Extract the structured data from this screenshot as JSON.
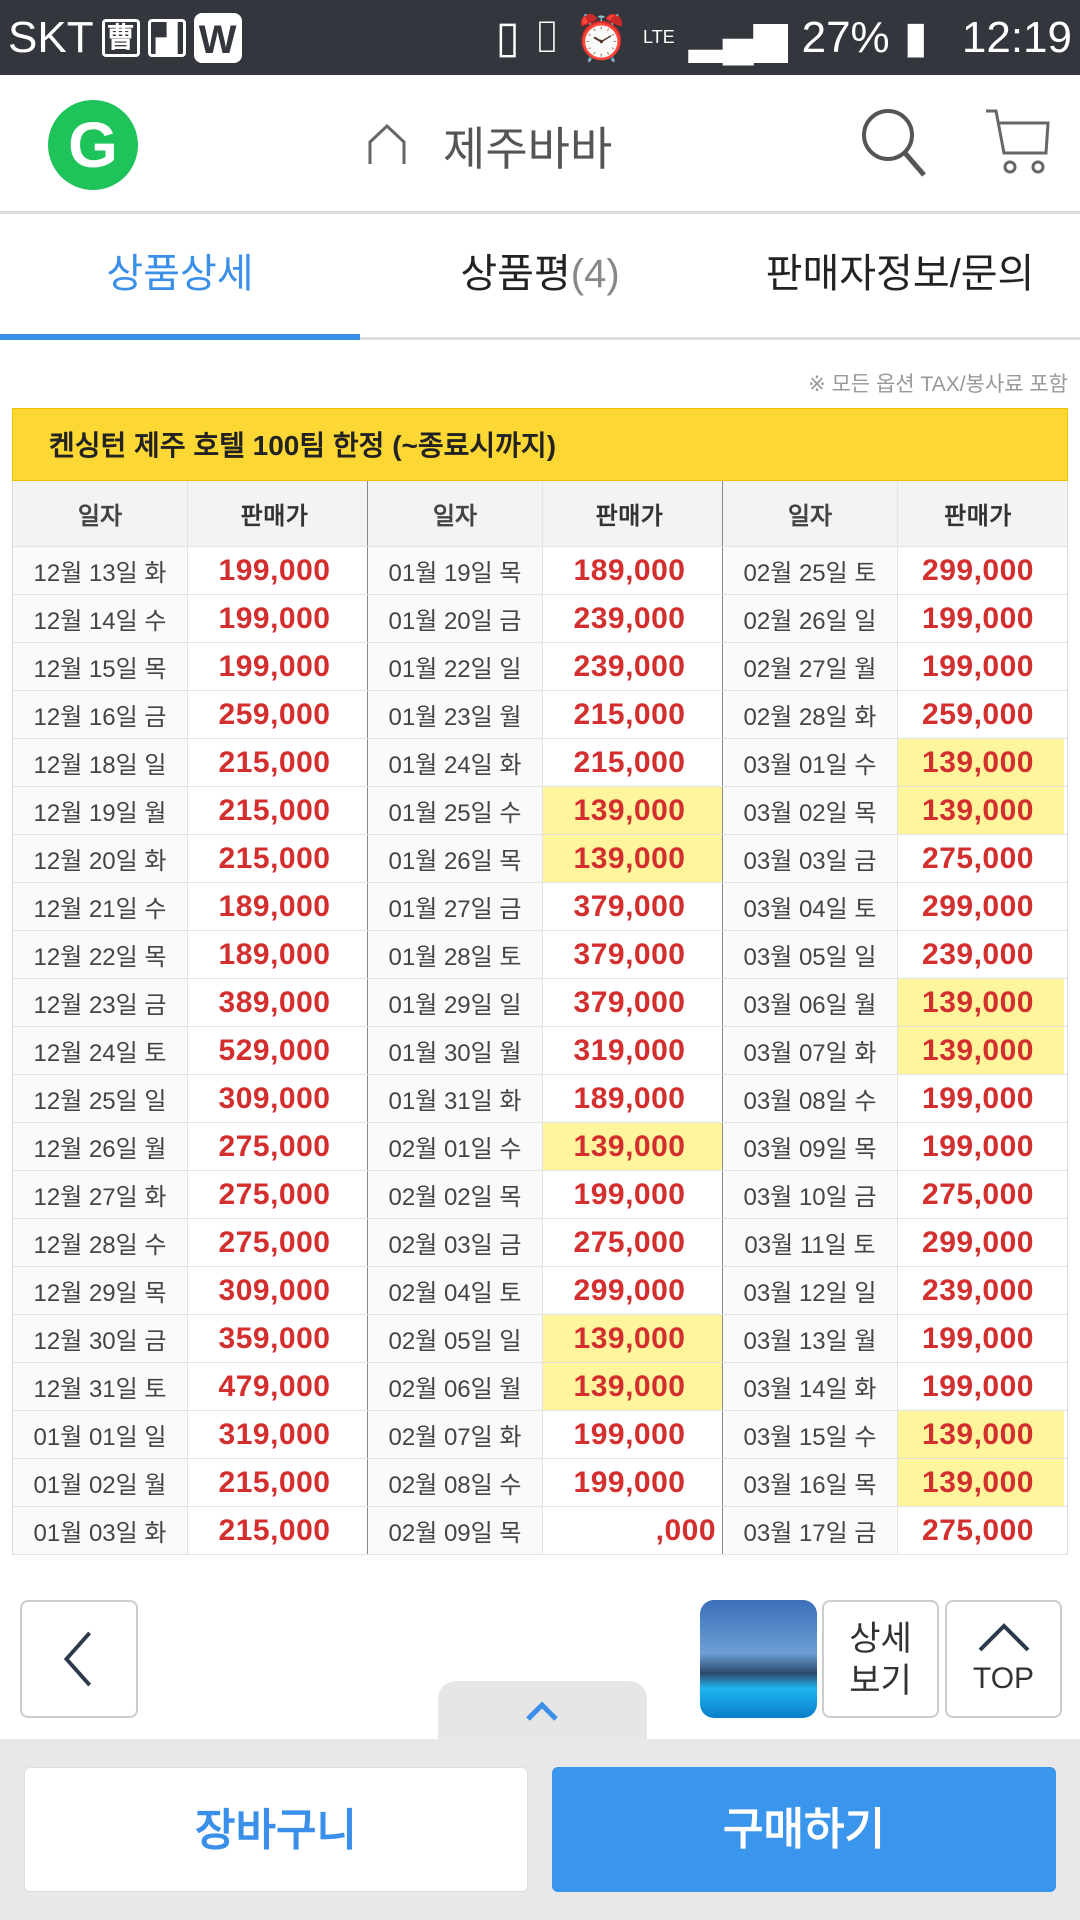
{
  "status": {
    "carrier": "SKT",
    "net": "LTE",
    "battery": "27%",
    "time": "12:19",
    "icons": [
      "news-icon",
      "gallery-icon",
      "w-app-icon",
      "screen-mirror-icon",
      "vibrate-icon",
      "alarm-icon",
      "signal-icon",
      "battery-icon"
    ]
  },
  "header": {
    "logo": "G",
    "shop_name": "제주바바"
  },
  "tabs": [
    {
      "label": "상품상세"
    },
    {
      "label": "상품평",
      "count": "(4)"
    },
    {
      "label": "판매자정보/문의"
    }
  ],
  "note": "※ 모든 옵션 TAX/봉사료 포함",
  "table": {
    "title": "켄싱턴 제주 호텔 100팀 한정 (~종료시까지)",
    "headers": [
      "일자",
      "판매가",
      "일자",
      "판매가",
      "일자",
      "판매가"
    ],
    "highlight_color": "#fff59d",
    "rows": [
      [
        [
          "12월 13일 화",
          "199,000",
          0
        ],
        [
          "01월 19일 목",
          "189,000",
          0
        ],
        [
          "02월 25일 토",
          "299,000",
          0
        ]
      ],
      [
        [
          "12월 14일 수",
          "199,000",
          0
        ],
        [
          "01월 20일 금",
          "239,000",
          0
        ],
        [
          "02월 26일 일",
          "199,000",
          0
        ]
      ],
      [
        [
          "12월 15일 목",
          "199,000",
          0
        ],
        [
          "01월 22일 일",
          "239,000",
          0
        ],
        [
          "02월 27일 월",
          "199,000",
          0
        ]
      ],
      [
        [
          "12월 16일 금",
          "259,000",
          0
        ],
        [
          "01월 23일 월",
          "215,000",
          0
        ],
        [
          "02월 28일 화",
          "259,000",
          0
        ]
      ],
      [
        [
          "12월 18일 일",
          "215,000",
          0
        ],
        [
          "01월 24일 화",
          "215,000",
          0
        ],
        [
          "03월 01일 수",
          "139,000",
          1
        ]
      ],
      [
        [
          "12월 19일 월",
          "215,000",
          0
        ],
        [
          "01월 25일 수",
          "139,000",
          1
        ],
        [
          "03월 02일 목",
          "139,000",
          1
        ]
      ],
      [
        [
          "12월 20일 화",
          "215,000",
          0
        ],
        [
          "01월 26일 목",
          "139,000",
          1
        ],
        [
          "03월 03일 금",
          "275,000",
          0
        ]
      ],
      [
        [
          "12월 21일 수",
          "189,000",
          0
        ],
        [
          "01월 27일 금",
          "379,000",
          0
        ],
        [
          "03월 04일 토",
          "299,000",
          0
        ]
      ],
      [
        [
          "12월 22일 목",
          "189,000",
          0
        ],
        [
          "01월 28일 토",
          "379,000",
          0
        ],
        [
          "03월 05일 일",
          "239,000",
          0
        ]
      ],
      [
        [
          "12월 23일 금",
          "389,000",
          0
        ],
        [
          "01월 29일 일",
          "379,000",
          0
        ],
        [
          "03월 06일 월",
          "139,000",
          1
        ]
      ],
      [
        [
          "12월 24일 토",
          "529,000",
          0
        ],
        [
          "01월 30일 월",
          "319,000",
          0
        ],
        [
          "03월 07일 화",
          "139,000",
          1
        ]
      ],
      [
        [
          "12월 25일 일",
          "309,000",
          0
        ],
        [
          "01월 31일 화",
          "189,000",
          0
        ],
        [
          "03월 08일 수",
          "199,000",
          0
        ]
      ],
      [
        [
          "12월 26일 월",
          "275,000",
          0
        ],
        [
          "02월 01일 수",
          "139,000",
          1
        ],
        [
          "03월 09일 목",
          "199,000",
          0
        ]
      ],
      [
        [
          "12월 27일 화",
          "275,000",
          0
        ],
        [
          "02월 02일 목",
          "199,000",
          0
        ],
        [
          "03월 10일 금",
          "275,000",
          0
        ]
      ],
      [
        [
          "12월 28일 수",
          "275,000",
          0
        ],
        [
          "02월 03일 금",
          "275,000",
          0
        ],
        [
          "03월 11일 토",
          "299,000",
          0
        ]
      ],
      [
        [
          "12월 29일 목",
          "309,000",
          0
        ],
        [
          "02월 04일 토",
          "299,000",
          0
        ],
        [
          "03월 12일 일",
          "239,000",
          0
        ]
      ],
      [
        [
          "12월 30일 금",
          "359,000",
          0
        ],
        [
          "02월 05일 일",
          "139,000",
          1
        ],
        [
          "03월 13일 월",
          "199,000",
          0
        ]
      ],
      [
        [
          "12월 31일 토",
          "479,000",
          0
        ],
        [
          "02월 06일 월",
          "139,000",
          1
        ],
        [
          "03월 14일 화",
          "199,000",
          0
        ]
      ],
      [
        [
          "01월 01일 일",
          "319,000",
          0
        ],
        [
          "02월 07일 화",
          "199,000",
          0
        ],
        [
          "03월 15일 수",
          "139,000",
          1
        ]
      ],
      [
        [
          "01월 02일 월",
          "215,000",
          0
        ],
        [
          "02월 08일 수",
          "199,000",
          0
        ],
        [
          "03월 16일 목",
          "139,000",
          1
        ]
      ],
      [
        [
          "01월 03일 화",
          "215,000",
          0
        ],
        [
          "02월 09일 목",
          ",000",
          0
        ],
        [
          "03월 17일 금",
          "275,000",
          0
        ]
      ]
    ]
  },
  "floating": {
    "top_label": "TOP",
    "detail_label": "상세\n보기"
  },
  "bottom": {
    "cart_label": "장바구니",
    "buy_label": "구매하기"
  }
}
